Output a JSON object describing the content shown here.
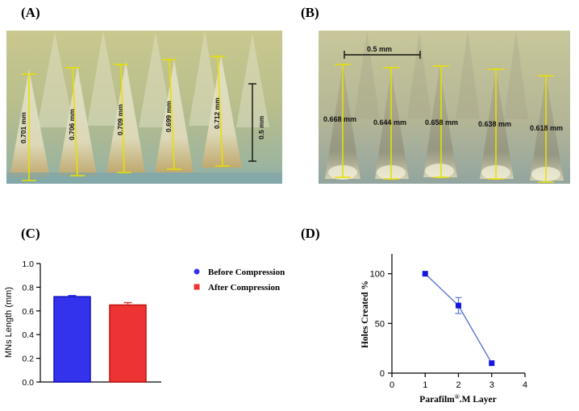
{
  "panels": {
    "a": {
      "label": "(A)",
      "measurements": [
        "0.701 mm",
        "0.706 mm",
        "0.709 mm",
        "0.699 mm",
        "0.712 mm"
      ],
      "scale_bar": "0.5 mm"
    },
    "b": {
      "label": "(B)",
      "measurements": [
        "0.668 mm",
        "0.644 mm",
        "0.658 mm",
        "0.638 mm",
        "0.618 mm"
      ],
      "scale_bar": "0.5 mm"
    },
    "c": {
      "label": "(C)"
    },
    "d": {
      "label": "(D)"
    }
  },
  "colors": {
    "before": "#3333ee",
    "after": "#ee3333",
    "line_d": "#5b74d6",
    "marker_d": "#1515e0",
    "measure": "#e8e000"
  },
  "chart_data": [
    {
      "type": "bar",
      "panel": "C",
      "categories": [
        "Before Compression",
        "After Compression"
      ],
      "values": [
        0.72,
        0.65
      ],
      "errors": [
        0.01,
        0.02
      ],
      "ylabel": "MNs Length (mm)",
      "xlabel": "",
      "ylim": [
        0.0,
        1.0
      ],
      "yticks": [
        "0.0",
        "0.2",
        "0.4",
        "0.6",
        "0.8",
        "1.0"
      ],
      "legend": [
        {
          "name": "Before Compression",
          "marker": "circle"
        },
        {
          "name": "After Compression",
          "marker": "square"
        }
      ],
      "legend_position": "right"
    },
    {
      "type": "line",
      "panel": "D",
      "x": [
        1,
        2,
        3
      ],
      "y": [
        100,
        68,
        10
      ],
      "errors": [
        0,
        8,
        0
      ],
      "xlabel_main": "Parafilm",
      "xlabel_sup": "®",
      "xlabel_tail": ".M Layer",
      "ylabel": "Holes Created %",
      "xlim": [
        0,
        4
      ],
      "ylim": [
        0,
        120
      ],
      "xticks": [
        "0",
        "1",
        "2",
        "3",
        "4"
      ],
      "yticks": [
        "0",
        "50",
        "100"
      ]
    }
  ]
}
